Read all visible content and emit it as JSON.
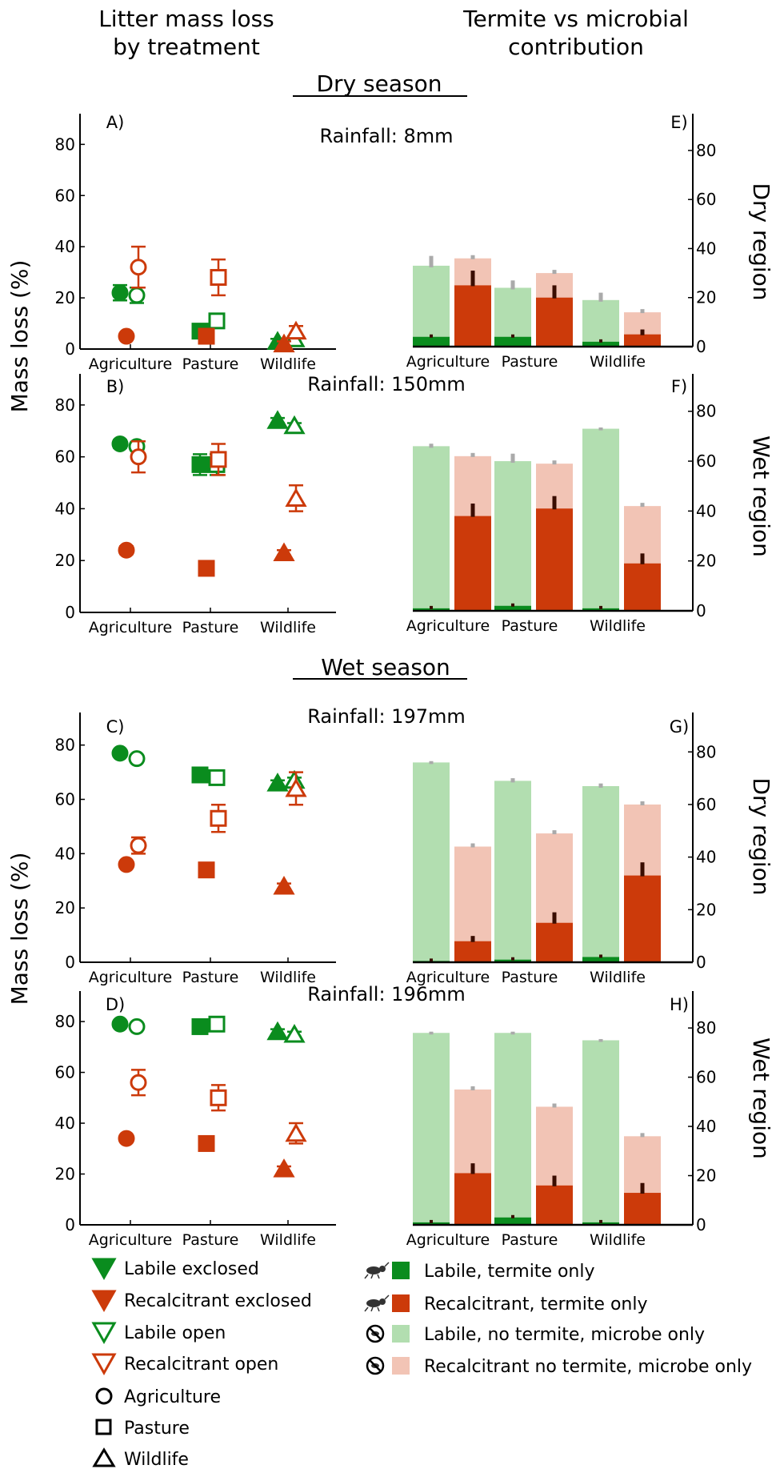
{
  "headers": {
    "left": [
      "Litter mass loss",
      "by treatment"
    ],
    "right": [
      "Termite vs microbial",
      "contribution"
    ],
    "dry_season": "Dry season",
    "wet_season": "Wet season"
  },
  "axis_labels": {
    "y_left": "Mass loss (%)",
    "dry_region": "Dry region",
    "wet_region": "Wet region"
  },
  "colors": {
    "green": "#0a8c1e",
    "red": "#cc3a0a",
    "light_green": "#b2deb0",
    "light_red": "#f2c4b5",
    "gray_err": "#aaaaaa",
    "dark_err": "#3a0d00"
  },
  "legend": {
    "left": [
      {
        "label": "Labile exclosed",
        "icon": "filled-triangle-down-green"
      },
      {
        "label": "Recalcitrant exclosed",
        "icon": "filled-triangle-down-red"
      },
      {
        "label": "Labile open",
        "icon": "open-triangle-down-green"
      },
      {
        "label": "Recalcitrant open",
        "icon": "open-triangle-down-red"
      },
      {
        "label": "Agriculture",
        "icon": "circle-icon"
      },
      {
        "label": "Pasture",
        "icon": "square-icon"
      },
      {
        "label": "Wildlife",
        "icon": "triangle-icon"
      }
    ],
    "right": [
      {
        "label": "Labile, termite only",
        "icon": "termite-icon",
        "color": "#0a8c1e"
      },
      {
        "label": "Recalcitrant, termite only",
        "icon": "termite-icon",
        "color": "#cc3a0a"
      },
      {
        "label": "Labile, no termite, microbe only",
        "icon": "no-termite-icon",
        "color": "#b2deb0"
      },
      {
        "label": "Recalcitrant no termite, microbe only",
        "icon": "no-termite-icon",
        "color": "#f2c4b5"
      }
    ]
  },
  "chart_data": [
    {
      "panel": "A)",
      "type": "scatter",
      "rainfall": "Rainfall: 8mm",
      "categories": [
        "Agriculture",
        "Pasture",
        "Wildlife"
      ],
      "ylim": [
        0,
        92
      ],
      "yticks": [
        0,
        20,
        40,
        60,
        80
      ],
      "series": [
        {
          "name": "Labile exclosed",
          "values": [
            22,
            7,
            3
          ],
          "errors": [
            3,
            1,
            1
          ]
        },
        {
          "name": "Labile open",
          "values": [
            21,
            11,
            4
          ],
          "errors": [
            3,
            1,
            1
          ]
        },
        {
          "name": "Recalcitrant exclosed",
          "values": [
            5,
            5,
            2
          ],
          "errors": [
            1,
            1,
            1
          ]
        },
        {
          "name": "Recalcitrant open",
          "values": [
            32,
            28,
            7
          ],
          "errors": [
            8,
            7,
            2
          ]
        }
      ]
    },
    {
      "panel": "B)",
      "type": "scatter",
      "rainfall": "Rainfall:  150mm",
      "categories": [
        "Agriculture",
        "Pasture",
        "Wildlife"
      ],
      "ylim": [
        0,
        92
      ],
      "yticks": [
        0,
        20,
        40,
        60,
        80
      ],
      "series": [
        {
          "name": "Labile exclosed",
          "values": [
            65,
            57,
            74
          ],
          "errors": [
            1.5,
            4,
            1
          ]
        },
        {
          "name": "Labile open",
          "values": [
            64,
            57,
            72
          ],
          "errors": [
            1.5,
            4,
            1
          ]
        },
        {
          "name": "Recalcitrant exclosed",
          "values": [
            24,
            17,
            23
          ],
          "errors": [
            1.5,
            1,
            1
          ]
        },
        {
          "name": "Recalcitrant open",
          "values": [
            60,
            59,
            44
          ],
          "errors": [
            6,
            6,
            5
          ]
        }
      ]
    },
    {
      "panel": "C)",
      "type": "scatter",
      "rainfall": "Rainfall:  197mm",
      "categories": [
        "Agriculture",
        "Pasture",
        "Wildlife"
      ],
      "ylim": [
        0,
        92
      ],
      "yticks": [
        0,
        20,
        40,
        60,
        80
      ],
      "series": [
        {
          "name": "Labile exclosed",
          "values": [
            77,
            69,
            66
          ],
          "errors": [
            1,
            1,
            1
          ]
        },
        {
          "name": "Labile open",
          "values": [
            75,
            68,
            67
          ],
          "errors": [
            1,
            1,
            1
          ]
        },
        {
          "name": "Recalcitrant exclosed",
          "values": [
            36,
            34,
            28
          ],
          "errors": [
            1,
            1,
            1
          ]
        },
        {
          "name": "Recalcitrant open",
          "values": [
            43,
            53,
            64
          ],
          "errors": [
            3,
            5,
            6
          ]
        }
      ]
    },
    {
      "panel": "D)",
      "type": "scatter",
      "rainfall": "Rainfall:  196mm",
      "categories": [
        "Agriculture",
        "Pasture",
        "Wildlife"
      ],
      "ylim": [
        0,
        92
      ],
      "yticks": [
        0,
        20,
        40,
        60,
        80
      ],
      "series": [
        {
          "name": "Labile exclosed",
          "values": [
            79,
            78,
            76
          ],
          "errors": [
            1,
            1,
            1
          ]
        },
        {
          "name": "Labile open",
          "values": [
            78,
            79,
            75
          ],
          "errors": [
            1,
            1,
            1
          ]
        },
        {
          "name": "Recalcitrant exclosed",
          "values": [
            34,
            32,
            22
          ],
          "errors": [
            1,
            1,
            1
          ]
        },
        {
          "name": "Recalcitrant open",
          "values": [
            56,
            50,
            36
          ],
          "errors": [
            5,
            5,
            4
          ]
        }
      ]
    },
    {
      "panel": "E)",
      "type": "bar",
      "region": "Dry region",
      "categories": [
        "Agriculture",
        "Pasture",
        "Wildlife"
      ],
      "ylim": [
        0,
        95
      ],
      "yticks": [
        0,
        20,
        40,
        60,
        80
      ],
      "labile_total": [
        33,
        24,
        19
      ],
      "labile_termite": [
        4,
        4,
        2
      ],
      "labile_total_err": [
        4,
        3,
        3
      ],
      "recalcitrant_total": [
        36,
        30,
        14
      ],
      "recalcitrant_termite": [
        25,
        20,
        5
      ],
      "recalcitrant_termite_err": [
        6,
        5,
        2
      ]
    },
    {
      "panel": "F)",
      "type": "bar",
      "region": "Wet region",
      "categories": [
        "Agriculture",
        "Pasture",
        "Wildlife"
      ],
      "ylim": [
        0,
        95
      ],
      "yticks": [
        0,
        20,
        40,
        60,
        80
      ],
      "labile_total": [
        66,
        60,
        73
      ],
      "labile_termite": [
        1,
        2,
        1
      ],
      "labile_total_err": [
        1,
        3,
        0.5
      ],
      "recalcitrant_total": [
        62,
        59,
        42
      ],
      "recalcitrant_termite": [
        38,
        41,
        19
      ],
      "recalcitrant_termite_err": [
        5,
        5,
        4
      ]
    },
    {
      "panel": "G)",
      "type": "bar",
      "region": "Dry region",
      "categories": [
        "Agriculture",
        "Pasture",
        "Wildlife"
      ],
      "ylim": [
        0,
        95
      ],
      "yticks": [
        0,
        20,
        40,
        60,
        80
      ],
      "labile_total": [
        76,
        69,
        67
      ],
      "labile_termite": [
        0.5,
        1,
        2
      ],
      "labile_total_err": [
        0.5,
        1,
        1
      ],
      "recalcitrant_total": [
        44,
        49,
        60
      ],
      "recalcitrant_termite": [
        8,
        15,
        33
      ],
      "recalcitrant_termite_err": [
        2,
        4,
        5
      ]
    },
    {
      "panel": "H)",
      "type": "bar",
      "region": "Wet region",
      "categories": [
        "Agriculture",
        "Pasture",
        "Wildlife"
      ],
      "ylim": [
        0,
        95
      ],
      "yticks": [
        0,
        20,
        40,
        60,
        80
      ],
      "labile_total": [
        78,
        78,
        75
      ],
      "labile_termite": [
        1,
        3,
        1
      ],
      "labile_total_err": [
        0.5,
        0.5,
        0.5
      ],
      "recalcitrant_total": [
        55,
        48,
        36
      ],
      "recalcitrant_termite": [
        21,
        16,
        13
      ],
      "recalcitrant_termite_err": [
        4,
        4,
        4
      ]
    }
  ]
}
